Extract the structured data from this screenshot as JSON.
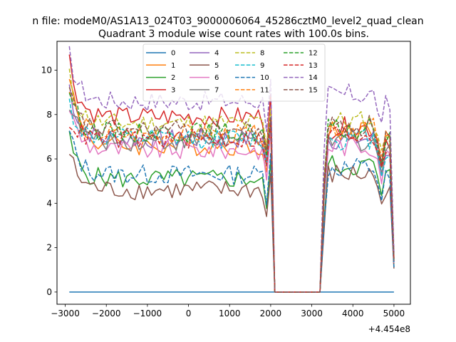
{
  "figure": {
    "suptitle": "n file: modeM0/AS1A13_024T03_9000006064_45286cztM0_level2_quad_clean",
    "background": "#ffffff"
  },
  "chart_data": {
    "type": "line",
    "title": "Quadrant 3 module wise count rates with 100.0s bins.",
    "xlabel": "",
    "ylabel": "",
    "x_offset_label": "+4.454e8",
    "xlim": [
      -3200,
      5400
    ],
    "ylim": [
      -0.55,
      11.3
    ],
    "xticks": [
      -3000,
      -2000,
      -1000,
      0,
      1000,
      2000,
      3000,
      4000,
      5000
    ],
    "xtick_labels": [
      "−3000",
      "−2000",
      "−1000",
      "0",
      "1000",
      "2000",
      "3000",
      "4000",
      "5000"
    ],
    "yticks": [
      0,
      2,
      4,
      6,
      8,
      10
    ],
    "ytick_labels": [
      "0",
      "2",
      "4",
      "6",
      "8",
      "10"
    ],
    "grid": false,
    "legend_position": "upper-center",
    "legend_columns": 4,
    "x_seg1": [
      -2900,
      -2800,
      -2700,
      -2600,
      -2500,
      -2400,
      -2300,
      -2200,
      -2100,
      -2000,
      -1900,
      -1800,
      -1700,
      -1600,
      -1500,
      -1400,
      -1300,
      -1200,
      -1100,
      -1000,
      -900,
      -800,
      -700,
      -600,
      -500,
      -400,
      -300,
      -200,
      -100,
      0,
      100,
      200,
      300,
      400,
      500,
      600,
      700,
      800,
      900,
      1000,
      1100,
      1200,
      1300,
      1400,
      1500,
      1600,
      1700,
      1800,
      1900,
      2000,
      2100
    ],
    "x_gap": [
      2100,
      3200
    ],
    "x_seg2": [
      3200,
      3300,
      3400,
      3500,
      3600,
      3700,
      3800,
      3900,
      4000,
      4100,
      4200,
      4300,
      4400,
      4500,
      4600,
      4700,
      4800,
      4900,
      5000
    ],
    "series": [
      {
        "name": "0",
        "color": "#1f77b4",
        "dashed": false,
        "base1": 0.0,
        "base2": 0.0,
        "spike": 0.0
      },
      {
        "name": "1",
        "color": "#ff7f0e",
        "dashed": false,
        "base1": 6.6,
        "base2": 7.3,
        "spike": 10.0
      },
      {
        "name": "2",
        "color": "#2ca02c",
        "dashed": false,
        "base1": 5.1,
        "base2": 5.7,
        "spike": 6.9
      },
      {
        "name": "3",
        "color": "#d62728",
        "dashed": false,
        "base1": 7.9,
        "base2": 7.4,
        "spike": 10.5
      },
      {
        "name": "4",
        "color": "#9467bd",
        "dashed": false,
        "base1": 6.9,
        "base2": 6.9,
        "spike": 9.3
      },
      {
        "name": "5",
        "color": "#8c564b",
        "dashed": false,
        "base1": 4.6,
        "base2": 5.3,
        "spike": 6.3
      },
      {
        "name": "6",
        "color": "#e377c2",
        "dashed": false,
        "base1": 6.4,
        "base2": 6.6,
        "spike": 8.4
      },
      {
        "name": "7",
        "color": "#7f7f7f",
        "dashed": false,
        "base1": 6.8,
        "base2": 6.8,
        "spike": 8.6
      },
      {
        "name": "8",
        "color": "#bcbd22",
        "dashed": true,
        "base1": 7.6,
        "base2": 7.7,
        "spike": 9.7
      },
      {
        "name": "9",
        "color": "#17becf",
        "dashed": true,
        "base1": 6.9,
        "base2": 6.9,
        "spike": 8.5
      },
      {
        "name": "10",
        "color": "#1f77b4",
        "dashed": true,
        "base1": 5.3,
        "base2": 5.6,
        "spike": 7.2
      },
      {
        "name": "11",
        "color": "#ff7f0e",
        "dashed": true,
        "base1": 7.1,
        "base2": 7.4,
        "spike": 9.1
      },
      {
        "name": "12",
        "color": "#2ca02c",
        "dashed": true,
        "base1": 7.2,
        "base2": 7.3,
        "spike": 9.2
      },
      {
        "name": "13",
        "color": "#d62728",
        "dashed": true,
        "base1": 6.9,
        "base2": 7.1,
        "spike": 7.8
      },
      {
        "name": "14",
        "color": "#9467bd",
        "dashed": true,
        "base1": 8.6,
        "base2": 8.9,
        "spike": 10.7
      },
      {
        "name": "15",
        "color": "#8c564b",
        "dashed": true,
        "base1": 7.3,
        "base2": 7.5,
        "spike": 9.0
      }
    ]
  }
}
